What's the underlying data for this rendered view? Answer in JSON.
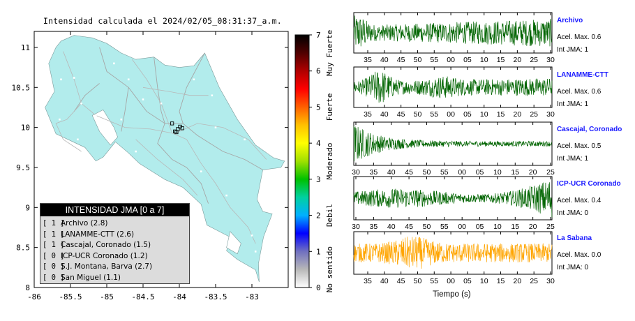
{
  "map": {
    "title": "Intensidad calculada el 2024/02/05_08:31:37_a.m.",
    "x_ticks": [
      "-86",
      "-85.5",
      "-85",
      "-84.5",
      "-84",
      "-83.5",
      "-83"
    ],
    "x_tick_values": [
      -86,
      -85.5,
      -85,
      -84.5,
      -84,
      -83.5,
      -83
    ],
    "y_ticks": [
      "11",
      "10.5",
      "10",
      "9.5",
      "9",
      "8.5",
      "8"
    ],
    "y_tick_values": [
      11,
      10.5,
      10,
      9.5,
      9,
      8.5,
      8
    ],
    "x_range": [
      -86,
      -82.5
    ],
    "y_range": [
      8,
      11.2
    ],
    "land_color": "#b2ecec",
    "colors": {
      "land": "#b2ecec",
      "border": "#8a8a8a"
    }
  },
  "colorbar": {
    "ticks": [
      "0",
      "1",
      "2",
      "3",
      "4",
      "5",
      "6",
      "7"
    ],
    "range": [
      0,
      7
    ],
    "categories": [
      "No sentido",
      "Debil",
      "Moderado",
      "Fuerte",
      "Muy Fuerte"
    ],
    "colors": [
      "#ffffff",
      "#b8b8b8",
      "#7070c0",
      "#0000ff",
      "#00b0ff",
      "#00d0a0",
      "#00c000",
      "#a0e000",
      "#ffff00",
      "#ffc000",
      "#ff6000",
      "#ff0000",
      "#b00000",
      "#500000",
      "#000000"
    ]
  },
  "legend": {
    "title": "INTENSIDAD JMA [0 a 7]",
    "items": [
      {
        "jma": "[ 1 ]",
        "label": "Archivo (2.8)"
      },
      {
        "jma": "[ 1 ]",
        "label": "LANAMME-CTT (2.6)"
      },
      {
        "jma": "[ 1 ]",
        "label": "Cascajal, Coronado (1.5)"
      },
      {
        "jma": "[ 0 ]",
        "label": "ICP-UCR Coronado (1.2)"
      },
      {
        "jma": "[ 0 ]",
        "label": "S.J. Montana, Barva (2.7)"
      },
      {
        "jma": "[ 0 ]",
        "label": "San Miguel (1.1)"
      }
    ]
  },
  "stations": [
    {
      "name": "Archivo",
      "accel_label": "Acel. Max. 0.6",
      "jma_label": "Int JMA: 1",
      "accel": 0.6,
      "jma": 1,
      "ticks": [
        "35",
        "40",
        "45",
        "50",
        "55",
        "00",
        "05",
        "10",
        "15",
        "20",
        "25",
        "30"
      ],
      "tick_start": 35,
      "color": "#006400"
    },
    {
      "name": "LANAMME-CTT",
      "accel_label": "Acel. Max. 0.6",
      "jma_label": "Int JMA: 1",
      "accel": 0.6,
      "jma": 1,
      "ticks": [
        "35",
        "40",
        "45",
        "50",
        "55",
        "00",
        "05",
        "10",
        "15",
        "20",
        "25",
        "30"
      ],
      "tick_start": 35,
      "color": "#006400"
    },
    {
      "name": "Cascajal, Coronado",
      "accel_label": "Acel. Max. 0.5",
      "jma_label": "Int JMA: 1",
      "accel": 0.5,
      "jma": 1,
      "ticks": [
        "30",
        "35",
        "40",
        "45",
        "50",
        "55",
        "00",
        "05",
        "10",
        "15",
        "20",
        "25"
      ],
      "tick_start": 30,
      "color": "#006400"
    },
    {
      "name": "ICP-UCR Coronado",
      "accel_label": "Acel. Max. 0.4",
      "jma_label": "Int JMA: 0",
      "accel": 0.4,
      "jma": 0,
      "ticks": [
        "30",
        "35",
        "40",
        "45",
        "50",
        "55",
        "00",
        "05",
        "10",
        "15",
        "20",
        "25"
      ],
      "tick_start": 30,
      "color": "#006400"
    },
    {
      "name": "La Sabana",
      "accel_label": "Acel. Max. 0.0",
      "jma_label": "Int JMA: 0",
      "accel": 0.0,
      "jma": 0,
      "ticks": [
        "35",
        "40",
        "45",
        "50",
        "55",
        "00",
        "05",
        "10",
        "15",
        "20",
        "25",
        "30"
      ],
      "tick_start": 35,
      "color": "#ffa500"
    }
  ],
  "traces_xlabel": "Tiempo (s)",
  "chart_data": [
    {
      "type": "scatter",
      "title": "Intensidad calculada el 2024/02/05_08:31:37_a.m.",
      "x_ticks": [
        -86,
        -85.5,
        -85,
        -84.5,
        -84,
        -83.5,
        -83
      ],
      "y_ticks": [
        11,
        10.5,
        10,
        9.5,
        9,
        8.5,
        8
      ],
      "ylim": [
        8,
        11.2
      ],
      "xlim": [
        -86,
        -82.5
      ],
      "colorbar": {
        "range": [
          0,
          7
        ],
        "labels": [
          "No sentido",
          "Debil",
          "Moderado",
          "Fuerte",
          "Muy Fuerte"
        ]
      },
      "series": [
        {
          "name": "Archivo",
          "x": [
            -83.99
          ],
          "y": [
            10.01
          ],
          "intensity": 2.8
        },
        {
          "name": "LANAMME-CTT",
          "x": [
            -84.04
          ],
          "y": [
            9.94
          ],
          "intensity": 2.6
        },
        {
          "name": "Cascajal, Coronado",
          "x": [
            -83.96
          ],
          "y": [
            9.99
          ],
          "intensity": 1.5
        },
        {
          "name": "ICP-UCR Coronado",
          "x": [
            -84.02
          ],
          "y": [
            9.98
          ],
          "intensity": 1.2
        },
        {
          "name": "S.J. Montana, Barva",
          "x": [
            -84.1
          ],
          "y": [
            10.05
          ],
          "intensity": 2.7
        },
        {
          "name": "San Miguel",
          "x": [
            -84.06
          ],
          "y": [
            9.95
          ],
          "intensity": 1.1
        }
      ]
    },
    {
      "type": "line",
      "xlabel": "Tiempo (s)",
      "series": [
        {
          "name": "Archivo",
          "peak_accel": 0.6,
          "jma": 1
        },
        {
          "name": "LANAMME-CTT",
          "peak_accel": 0.6,
          "jma": 1
        },
        {
          "name": "Cascajal, Coronado",
          "peak_accel": 0.5,
          "jma": 1
        },
        {
          "name": "ICP-UCR Coronado",
          "peak_accel": 0.4,
          "jma": 0
        },
        {
          "name": "La Sabana",
          "peak_accel": 0.0,
          "jma": 0
        }
      ]
    }
  ]
}
